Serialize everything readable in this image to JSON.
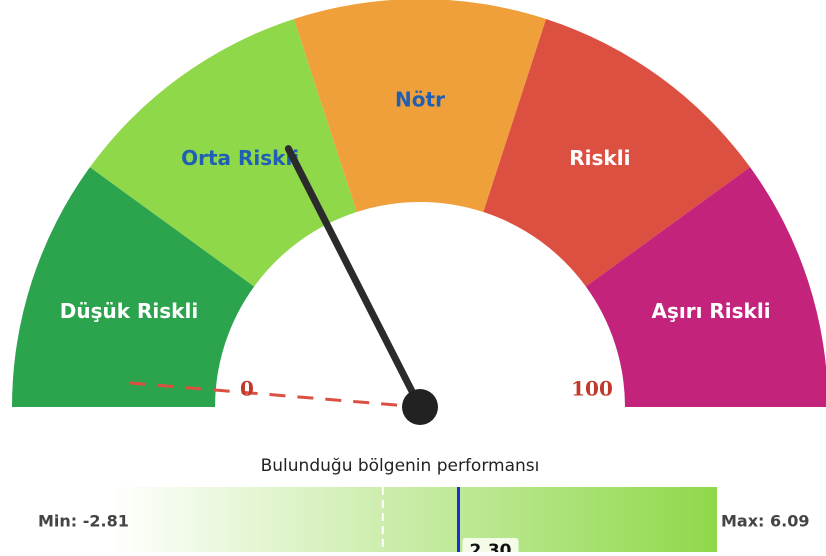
{
  "gauge": {
    "range": [
      {
        "value": 0,
        "label": "0"
      },
      {
        "value": 100,
        "label": "100"
      }
    ],
    "needle_value": 35,
    "bands": [
      {
        "label": "Düşük Riskli",
        "color": "#2ca44e",
        "from": 0,
        "to": 20
      },
      {
        "label": "Orta Riskli",
        "color": "#8fd84a",
        "from": 20,
        "to": 40
      },
      {
        "label": "Nötr",
        "color": "#f0a03a",
        "from": 40,
        "to": 60
      },
      {
        "label": "Riskli",
        "color": "#dc5042",
        "from": 60,
        "to": 80
      },
      {
        "label": "Aşırı Riskli",
        "color": "#c3237b",
        "from": 80,
        "to": 100
      }
    ]
  },
  "performance": {
    "title": "Bulunduğu bölgenin performansı",
    "min": {
      "value": -2.81,
      "label": "Min: -2.81"
    },
    "max": {
      "value": 6.09,
      "label": "Max: 6.09"
    },
    "value": {
      "value": 2.3,
      "label": "2.30"
    },
    "marker_value": 1.19
  }
}
